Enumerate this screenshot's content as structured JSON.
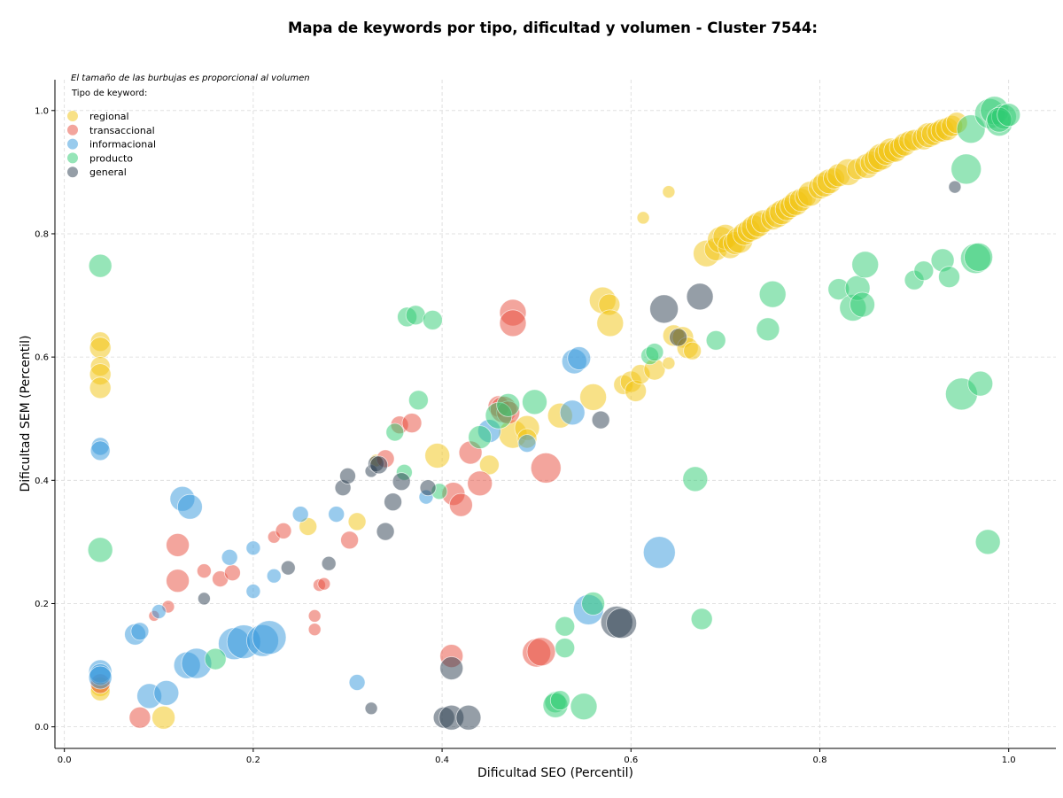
{
  "chart_data": {
    "type": "scatter",
    "title": "Mapa de keywords por tipo, dificultad y volumen - Cluster 7544:",
    "xlabel": "Dificultad SEO (Percentil)",
    "ylabel": "Dificultad SEM (Percentil)",
    "xlim": [
      -0.01,
      1.05
    ],
    "ylim": [
      -0.035,
      1.05
    ],
    "xticks": [
      "0.0",
      "0.2",
      "0.4",
      "0.6",
      "0.8",
      "1.0"
    ],
    "yticks": [
      "0.0",
      "0.2",
      "0.4",
      "0.6",
      "0.8",
      "1.0"
    ],
    "grid": true,
    "legend_position": "top-left",
    "note": "El tamaño de las burbujas es proporcional al volumen",
    "legend_title": "Tipo de keyword:",
    "series": [
      {
        "name": "regional",
        "color": "#f1c40f",
        "points": [
          [
            0.038,
            0.625,
            11
          ],
          [
            0.038,
            0.615,
            12
          ],
          [
            0.038,
            0.585,
            11
          ],
          [
            0.038,
            0.572,
            12
          ],
          [
            0.038,
            0.55,
            12
          ],
          [
            0.038,
            0.065,
            11
          ],
          [
            0.038,
            0.058,
            11
          ],
          [
            0.105,
            0.015,
            13
          ],
          [
            0.258,
            0.325,
            10
          ],
          [
            0.31,
            0.333,
            10
          ],
          [
            0.33,
            0.432,
            7
          ],
          [
            0.45,
            0.425,
            11
          ],
          [
            0.475,
            0.475,
            16
          ],
          [
            0.49,
            0.485,
            14
          ],
          [
            0.49,
            0.468,
            11
          ],
          [
            0.525,
            0.505,
            14
          ],
          [
            0.395,
            0.44,
            14
          ],
          [
            0.56,
            0.535,
            15
          ],
          [
            0.57,
            0.692,
            15
          ],
          [
            0.577,
            0.685,
            12
          ],
          [
            0.578,
            0.655,
            15
          ],
          [
            0.592,
            0.555,
            11
          ],
          [
            0.6,
            0.56,
            12
          ],
          [
            0.605,
            0.545,
            12
          ],
          [
            0.61,
            0.572,
            11
          ],
          [
            0.625,
            0.58,
            12
          ],
          [
            0.64,
            0.59,
            7
          ],
          [
            0.645,
            0.635,
            12
          ],
          [
            0.655,
            0.632,
            12
          ],
          [
            0.66,
            0.615,
            12
          ],
          [
            0.665,
            0.61,
            10
          ],
          [
            0.613,
            0.826,
            7
          ],
          [
            0.64,
            0.868,
            7
          ],
          [
            0.68,
            0.768,
            15
          ],
          [
            0.69,
            0.775,
            13
          ],
          [
            0.695,
            0.79,
            15
          ],
          [
            0.7,
            0.795,
            14
          ],
          [
            0.705,
            0.78,
            14
          ],
          [
            0.71,
            0.785,
            13
          ],
          [
            0.715,
            0.79,
            15
          ],
          [
            0.72,
            0.8,
            13
          ],
          [
            0.725,
            0.805,
            13
          ],
          [
            0.73,
            0.81,
            14
          ],
          [
            0.735,
            0.815,
            14
          ],
          [
            0.74,
            0.82,
            13
          ],
          [
            0.75,
            0.825,
            13
          ],
          [
            0.755,
            0.83,
            14
          ],
          [
            0.76,
            0.835,
            14
          ],
          [
            0.765,
            0.84,
            13
          ],
          [
            0.77,
            0.845,
            13
          ],
          [
            0.775,
            0.85,
            14
          ],
          [
            0.78,
            0.855,
            13
          ],
          [
            0.785,
            0.86,
            12
          ],
          [
            0.79,
            0.865,
            14
          ],
          [
            0.8,
            0.875,
            13
          ],
          [
            0.805,
            0.88,
            14
          ],
          [
            0.81,
            0.885,
            14
          ],
          [
            0.815,
            0.89,
            12
          ],
          [
            0.82,
            0.895,
            13
          ],
          [
            0.83,
            0.9,
            15
          ],
          [
            0.84,
            0.905,
            12
          ],
          [
            0.85,
            0.91,
            14
          ],
          [
            0.855,
            0.915,
            13
          ],
          [
            0.86,
            0.92,
            14
          ],
          [
            0.865,
            0.925,
            15
          ],
          [
            0.87,
            0.93,
            13
          ],
          [
            0.875,
            0.935,
            14
          ],
          [
            0.88,
            0.935,
            13
          ],
          [
            0.885,
            0.94,
            12
          ],
          [
            0.89,
            0.945,
            13
          ],
          [
            0.895,
            0.95,
            12
          ],
          [
            0.9,
            0.952,
            12
          ],
          [
            0.91,
            0.955,
            13
          ],
          [
            0.915,
            0.96,
            14
          ],
          [
            0.92,
            0.962,
            13
          ],
          [
            0.925,
            0.965,
            12
          ],
          [
            0.93,
            0.968,
            13
          ],
          [
            0.935,
            0.97,
            13
          ],
          [
            0.94,
            0.975,
            12
          ],
          [
            0.945,
            0.98,
            12
          ]
        ]
      },
      {
        "name": "transaccional",
        "color": "#e74c3c",
        "points": [
          [
            0.038,
            0.07,
            11
          ],
          [
            0.08,
            0.015,
            12
          ],
          [
            0.095,
            0.18,
            6
          ],
          [
            0.11,
            0.195,
            7
          ],
          [
            0.12,
            0.295,
            13
          ],
          [
            0.12,
            0.237,
            13
          ],
          [
            0.148,
            0.253,
            8
          ],
          [
            0.165,
            0.24,
            9
          ],
          [
            0.178,
            0.25,
            9
          ],
          [
            0.222,
            0.308,
            7
          ],
          [
            0.232,
            0.318,
            9
          ],
          [
            0.265,
            0.18,
            7
          ],
          [
            0.265,
            0.158,
            7
          ],
          [
            0.27,
            0.23,
            7
          ],
          [
            0.275,
            0.232,
            7
          ],
          [
            0.302,
            0.303,
            10
          ],
          [
            0.34,
            0.435,
            10
          ],
          [
            0.355,
            0.49,
            10
          ],
          [
            0.368,
            0.493,
            11
          ],
          [
            0.41,
            0.115,
            13
          ],
          [
            0.412,
            0.378,
            13
          ],
          [
            0.42,
            0.36,
            13
          ],
          [
            0.43,
            0.445,
            13
          ],
          [
            0.44,
            0.395,
            14
          ],
          [
            0.46,
            0.52,
            12
          ],
          [
            0.465,
            0.515,
            15
          ],
          [
            0.47,
            0.51,
            13
          ],
          [
            0.475,
            0.672,
            15
          ],
          [
            0.475,
            0.655,
            15
          ],
          [
            0.5,
            0.12,
            16
          ],
          [
            0.505,
            0.122,
            16
          ],
          [
            0.51,
            0.42,
            17
          ]
        ]
      },
      {
        "name": "informacional",
        "color": "#3498db",
        "points": [
          [
            0.038,
            0.455,
            10
          ],
          [
            0.038,
            0.448,
            11
          ],
          [
            0.038,
            0.09,
            13
          ],
          [
            0.038,
            0.085,
            12
          ],
          [
            0.038,
            0.08,
            13
          ],
          [
            0.075,
            0.15,
            12
          ],
          [
            0.08,
            0.155,
            10
          ],
          [
            0.09,
            0.05,
            14
          ],
          [
            0.1,
            0.187,
            8
          ],
          [
            0.108,
            0.055,
            14
          ],
          [
            0.125,
            0.37,
            14
          ],
          [
            0.13,
            0.1,
            15
          ],
          [
            0.133,
            0.357,
            14
          ],
          [
            0.14,
            0.103,
            17
          ],
          [
            0.175,
            0.275,
            9
          ],
          [
            0.18,
            0.135,
            18
          ],
          [
            0.19,
            0.138,
            19
          ],
          [
            0.2,
            0.22,
            8
          ],
          [
            0.2,
            0.29,
            8
          ],
          [
            0.21,
            0.14,
            18
          ],
          [
            0.217,
            0.145,
            19
          ],
          [
            0.222,
            0.245,
            8
          ],
          [
            0.25,
            0.345,
            9
          ],
          [
            0.288,
            0.345,
            9
          ],
          [
            0.31,
            0.072,
            9
          ],
          [
            0.383,
            0.373,
            8
          ],
          [
            0.45,
            0.48,
            13
          ],
          [
            0.49,
            0.46,
            10
          ],
          [
            0.54,
            0.593,
            14
          ],
          [
            0.545,
            0.598,
            13
          ],
          [
            0.538,
            0.51,
            14
          ],
          [
            0.555,
            0.19,
            17
          ],
          [
            0.63,
            0.283,
            18
          ]
        ]
      },
      {
        "name": "producto",
        "color": "#2ecc71",
        "points": [
          [
            0.038,
            0.748,
            13
          ],
          [
            0.038,
            0.287,
            14
          ],
          [
            0.16,
            0.11,
            12
          ],
          [
            0.35,
            0.478,
            10
          ],
          [
            0.36,
            0.413,
            9
          ],
          [
            0.363,
            0.665,
            11
          ],
          [
            0.372,
            0.668,
            11
          ],
          [
            0.375,
            0.53,
            11
          ],
          [
            0.39,
            0.66,
            11
          ],
          [
            0.397,
            0.382,
            9
          ],
          [
            0.44,
            0.47,
            13
          ],
          [
            0.46,
            0.505,
            15
          ],
          [
            0.47,
            0.522,
            13
          ],
          [
            0.498,
            0.527,
            14
          ],
          [
            0.52,
            0.04,
            12
          ],
          [
            0.52,
            0.035,
            14
          ],
          [
            0.525,
            0.043,
            11
          ],
          [
            0.53,
            0.163,
            11
          ],
          [
            0.53,
            0.128,
            11
          ],
          [
            0.55,
            0.033,
            15
          ],
          [
            0.56,
            0.2,
            13
          ],
          [
            0.62,
            0.602,
            10
          ],
          [
            0.625,
            0.608,
            10
          ],
          [
            0.668,
            0.402,
            14
          ],
          [
            0.675,
            0.175,
            12
          ],
          [
            0.69,
            0.627,
            11
          ],
          [
            0.745,
            0.645,
            13
          ],
          [
            0.75,
            0.702,
            15
          ],
          [
            0.82,
            0.71,
            12
          ],
          [
            0.835,
            0.68,
            15
          ],
          [
            0.84,
            0.712,
            14
          ],
          [
            0.845,
            0.685,
            14
          ],
          [
            0.848,
            0.75,
            15
          ],
          [
            0.9,
            0.725,
            11
          ],
          [
            0.91,
            0.74,
            11
          ],
          [
            0.93,
            0.757,
            13
          ],
          [
            0.937,
            0.73,
            12
          ],
          [
            0.95,
            0.54,
            18
          ],
          [
            0.955,
            0.905,
            17
          ],
          [
            0.96,
            0.97,
            16
          ],
          [
            0.965,
            0.76,
            17
          ],
          [
            0.968,
            0.762,
            16
          ],
          [
            0.97,
            0.557,
            14
          ],
          [
            0.978,
            0.3,
            14
          ],
          [
            0.98,
            0.995,
            17
          ],
          [
            0.985,
            1.0,
            16
          ],
          [
            0.99,
            0.98,
            15
          ],
          [
            0.995,
            0.99,
            14
          ],
          [
            0.99,
            0.985,
            14
          ],
          [
            1.0,
            0.993,
            13
          ]
        ]
      },
      {
        "name": "general",
        "color": "#2c3e50",
        "points": [
          [
            0.148,
            0.208,
            7
          ],
          [
            0.237,
            0.258,
            8
          ],
          [
            0.28,
            0.265,
            8
          ],
          [
            0.295,
            0.388,
            9
          ],
          [
            0.3,
            0.407,
            9
          ],
          [
            0.325,
            0.03,
            7
          ],
          [
            0.325,
            0.415,
            7
          ],
          [
            0.33,
            0.427,
            9
          ],
          [
            0.333,
            0.425,
            10
          ],
          [
            0.34,
            0.317,
            10
          ],
          [
            0.348,
            0.365,
            10
          ],
          [
            0.357,
            0.398,
            10
          ],
          [
            0.385,
            0.388,
            9
          ],
          [
            0.402,
            0.015,
            12
          ],
          [
            0.41,
            0.095,
            13
          ],
          [
            0.41,
            0.015,
            14
          ],
          [
            0.428,
            0.015,
            14
          ],
          [
            0.568,
            0.498,
            10
          ],
          [
            0.585,
            0.17,
            18
          ],
          [
            0.59,
            0.168,
            17
          ],
          [
            0.635,
            0.678,
            16
          ],
          [
            0.65,
            0.632,
            10
          ],
          [
            0.673,
            0.698,
            15
          ],
          [
            0.943,
            0.876,
            7
          ]
        ]
      }
    ]
  }
}
